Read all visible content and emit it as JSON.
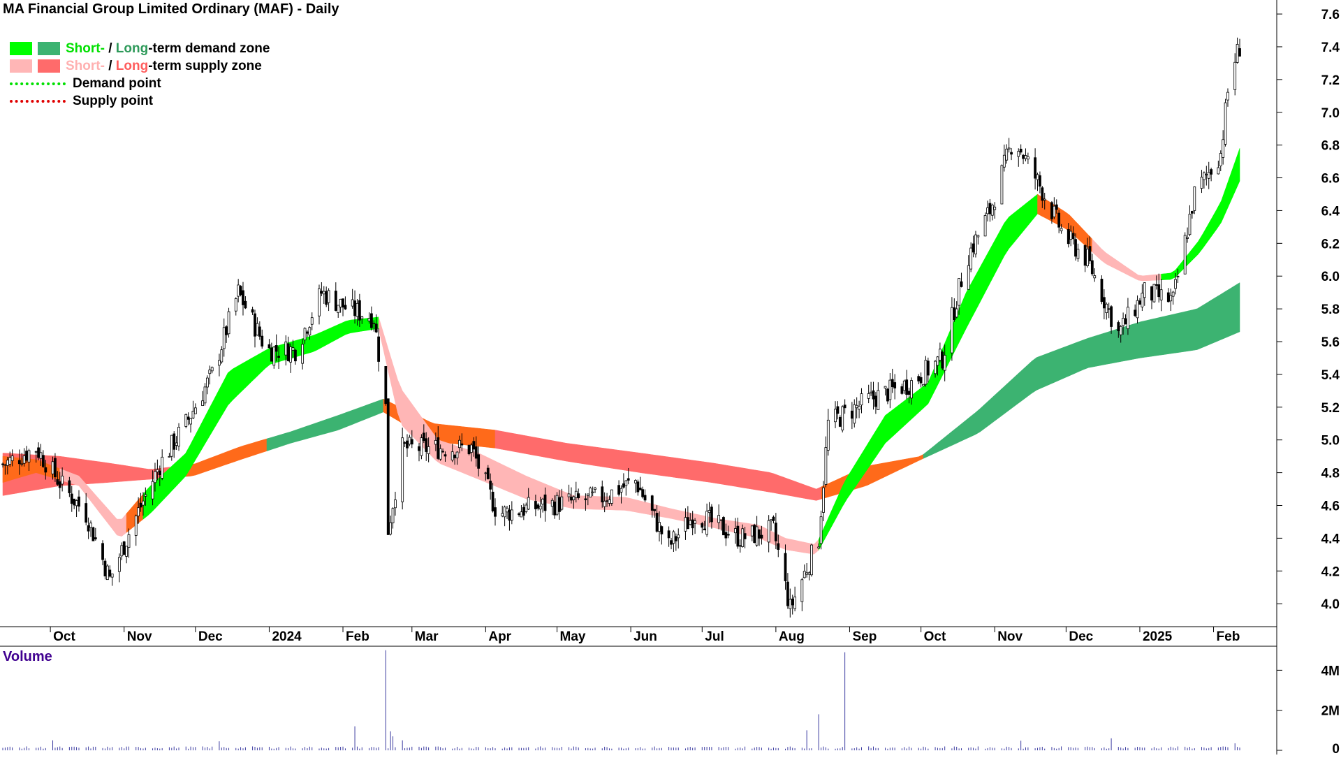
{
  "title": "MA Financial Group Limited Ordinary (MAF) - Daily",
  "legend": {
    "demand_short": "Short-",
    "demand_sep": " / ",
    "demand_long": "Long",
    "demand_rest": "-term demand zone",
    "supply_short": "Short-",
    "supply_sep": " / ",
    "supply_long": "Long",
    "supply_rest": "-term supply zone",
    "demand_point": "Demand point",
    "supply_point": "Supply point"
  },
  "volume_label": "Volume",
  "colors": {
    "short_demand": "#00ff00",
    "long_demand": "#3cb371",
    "short_supply": "#ffb6b6",
    "long_supply": "#ff6b6b",
    "orange_zone": "#ff6a1a",
    "demand_point": "#00e000",
    "supply_point": "#e00000",
    "volume_bar": "#3a3aa0",
    "candle": "#000000"
  },
  "chart_data": {
    "type": "candlestick",
    "title": "MA Financial Group Limited Ordinary (MAF) - Daily",
    "ylim": [
      3.86,
      7.66
    ],
    "y_ticks": [
      4.0,
      4.2,
      4.4,
      4.6,
      4.8,
      5.0,
      5.2,
      5.4,
      5.6,
      5.8,
      6.0,
      6.2,
      6.4,
      6.6,
      6.8,
      7.0,
      7.2,
      7.4,
      7.6
    ],
    "y_tick_labels": [
      "4.0",
      "4.2",
      "4.4",
      "4.6",
      "4.8",
      "5.0",
      "5.2",
      "5.4",
      "5.6",
      "5.8",
      "6.0",
      "6.2",
      "6.4",
      "6.6",
      "6.8",
      "7.0",
      "7.2",
      "7.4",
      "7.6"
    ],
    "x_period": [
      "2023-09-11",
      "2025-02-12"
    ],
    "x_tick_labels": [
      {
        "date": "2023-10-01",
        "label": "Oct"
      },
      {
        "date": "2023-11-01",
        "label": "Nov"
      },
      {
        "date": "2023-12-01",
        "label": "Dec"
      },
      {
        "date": "2024-01-01",
        "label": "2024"
      },
      {
        "date": "2024-02-01",
        "label": "Feb"
      },
      {
        "date": "2024-03-01",
        "label": "Mar"
      },
      {
        "date": "2024-04-01",
        "label": "Apr"
      },
      {
        "date": "2024-05-01",
        "label": "May"
      },
      {
        "date": "2024-06-01",
        "label": "Jun"
      },
      {
        "date": "2024-07-01",
        "label": "Jul"
      },
      {
        "date": "2024-08-01",
        "label": "Aug"
      },
      {
        "date": "2024-09-01",
        "label": "Sep"
      },
      {
        "date": "2024-10-01",
        "label": "Oct"
      },
      {
        "date": "2024-11-01",
        "label": "Nov"
      },
      {
        "date": "2024-12-01",
        "label": "Dec"
      },
      {
        "date": "2025-01-01",
        "label": "2025"
      },
      {
        "date": "2025-02-01",
        "label": "Feb"
      }
    ],
    "price_close_keypoints": [
      {
        "x": "2023-09-11",
        "y": 4.85
      },
      {
        "x": "2023-09-25",
        "y": 4.95
      },
      {
        "x": "2023-10-06",
        "y": 4.72
      },
      {
        "x": "2023-10-16",
        "y": 4.55
      },
      {
        "x": "2023-10-26",
        "y": 4.15
      },
      {
        "x": "2023-11-05",
        "y": 4.5
      },
      {
        "x": "2023-11-16",
        "y": 4.85
      },
      {
        "x": "2023-11-27",
        "y": 5.1
      },
      {
        "x": "2023-12-08",
        "y": 5.4
      },
      {
        "x": "2023-12-19",
        "y": 5.9
      },
      {
        "x": "2023-12-31",
        "y": 5.55
      },
      {
        "x": "2024-01-12",
        "y": 5.55
      },
      {
        "x": "2024-01-23",
        "y": 5.9
      },
      {
        "x": "2024-02-03",
        "y": 5.8
      },
      {
        "x": "2024-02-14",
        "y": 5.75
      },
      {
        "x": "2024-02-19",
        "y": 5.2
      },
      {
        "x": "2024-02-20",
        "y": 4.45
      },
      {
        "x": "2024-02-26",
        "y": 4.95
      },
      {
        "x": "2024-03-10",
        "y": 4.95
      },
      {
        "x": "2024-03-26",
        "y": 4.95
      },
      {
        "x": "2024-04-06",
        "y": 4.55
      },
      {
        "x": "2024-04-26",
        "y": 4.6
      },
      {
        "x": "2024-05-20",
        "y": 4.65
      },
      {
        "x": "2024-06-03",
        "y": 4.75
      },
      {
        "x": "2024-06-17",
        "y": 4.35
      },
      {
        "x": "2024-06-28",
        "y": 4.55
      },
      {
        "x": "2024-07-17",
        "y": 4.4
      },
      {
        "x": "2024-07-31",
        "y": 4.45
      },
      {
        "x": "2024-08-07",
        "y": 3.97
      },
      {
        "x": "2024-08-19",
        "y": 4.4
      },
      {
        "x": "2024-08-23",
        "y": 5.1
      },
      {
        "x": "2024-09-10",
        "y": 5.25
      },
      {
        "x": "2024-09-27",
        "y": 5.35
      },
      {
        "x": "2024-10-10",
        "y": 5.5
      },
      {
        "x": "2024-10-20",
        "y": 6.1
      },
      {
        "x": "2024-10-30",
        "y": 6.4
      },
      {
        "x": "2024-11-09",
        "y": 6.85
      },
      {
        "x": "2024-11-20",
        "y": 6.55
      },
      {
        "x": "2024-11-30",
        "y": 6.25
      },
      {
        "x": "2024-12-10",
        "y": 6.1
      },
      {
        "x": "2024-12-23",
        "y": 5.65
      },
      {
        "x": "2025-01-03",
        "y": 5.9
      },
      {
        "x": "2025-01-15",
        "y": 5.85
      },
      {
        "x": "2025-01-24",
        "y": 6.5
      },
      {
        "x": "2025-02-04",
        "y": 6.75
      },
      {
        "x": "2025-02-08",
        "y": 7.25
      },
      {
        "x": "2025-02-12",
        "y": 7.4
      }
    ],
    "short_term_zone": {
      "x": [
        "2023-09-11",
        "2023-09-25",
        "2023-10-13",
        "2023-10-30",
        "2023-11-12",
        "2023-11-27",
        "2023-12-15",
        "2024-01-01",
        "2024-01-20",
        "2024-02-03",
        "2024-02-16",
        "2024-02-25",
        "2024-03-12",
        "2024-03-29",
        "2024-04-18",
        "2024-05-08",
        "2024-05-30",
        "2024-06-18",
        "2024-07-07",
        "2024-07-25",
        "2024-08-05",
        "2024-08-18",
        "2024-08-30",
        "2024-09-16",
        "2024-10-04",
        "2024-10-20",
        "2024-11-06",
        "2024-11-19",
        "2024-12-02",
        "2024-12-17",
        "2025-01-01",
        "2025-01-15",
        "2025-01-26",
        "2025-02-04",
        "2025-02-12"
      ],
      "upper": [
        4.9,
        4.88,
        4.78,
        4.5,
        4.72,
        4.92,
        5.42,
        5.56,
        5.64,
        5.73,
        5.75,
        5.32,
        5.0,
        4.92,
        4.78,
        4.66,
        4.65,
        4.58,
        4.52,
        4.48,
        4.4,
        4.36,
        4.75,
        5.15,
        5.35,
        5.9,
        6.35,
        6.5,
        6.38,
        6.15,
        6.0,
        6.02,
        6.22,
        6.45,
        6.78
      ],
      "lower": [
        4.74,
        4.8,
        4.72,
        4.4,
        4.55,
        4.78,
        5.22,
        5.46,
        5.54,
        5.65,
        5.68,
        5.1,
        4.86,
        4.76,
        4.64,
        4.58,
        4.57,
        4.52,
        4.46,
        4.4,
        4.33,
        4.3,
        4.62,
        4.98,
        5.22,
        5.68,
        6.15,
        6.38,
        6.28,
        6.08,
        5.97,
        5.98,
        6.14,
        6.32,
        6.58
      ],
      "segments": [
        {
          "from": "2023-09-11",
          "to": "2023-10-05",
          "kind": "orange"
        },
        {
          "from": "2023-10-05",
          "to": "2023-11-02",
          "kind": "short_supply"
        },
        {
          "from": "2023-11-02",
          "to": "2023-11-09",
          "kind": "orange"
        },
        {
          "from": "2023-11-09",
          "to": "2024-02-16",
          "kind": "short_demand"
        },
        {
          "from": "2024-02-16",
          "to": "2024-04-10",
          "kind": "short_supply"
        },
        {
          "from": "2024-04-10",
          "to": "2024-08-19",
          "kind": "short_supply"
        },
        {
          "from": "2024-08-19",
          "to": "2024-11-19",
          "kind": "short_demand"
        },
        {
          "from": "2024-11-19",
          "to": "2024-12-12",
          "kind": "orange"
        },
        {
          "from": "2024-12-12",
          "to": "2025-01-10",
          "kind": "short_supply"
        },
        {
          "from": "2025-01-10",
          "to": "2025-02-12",
          "kind": "short_demand"
        }
      ]
    },
    "long_term_zone": {
      "x": [
        "2023-09-11",
        "2023-10-05",
        "2023-10-25",
        "2023-11-12",
        "2023-11-30",
        "2023-12-20",
        "2024-01-10",
        "2024-01-30",
        "2024-02-18",
        "2024-03-10",
        "2024-04-05",
        "2024-05-05",
        "2024-06-05",
        "2024-07-05",
        "2024-07-30",
        "2024-08-18",
        "2024-09-08",
        "2024-10-01",
        "2024-10-25",
        "2024-11-18",
        "2024-12-10",
        "2025-01-01",
        "2025-01-25",
        "2025-02-12"
      ],
      "upper": [
        4.92,
        4.9,
        4.86,
        4.82,
        4.85,
        4.96,
        5.05,
        5.15,
        5.25,
        5.1,
        5.06,
        4.98,
        4.92,
        4.86,
        4.8,
        4.7,
        4.84,
        4.9,
        5.18,
        5.5,
        5.62,
        5.72,
        5.8,
        5.96
      ],
      "lower": [
        4.66,
        4.72,
        4.74,
        4.76,
        4.78,
        4.88,
        4.98,
        5.06,
        5.17,
        4.99,
        4.95,
        4.87,
        4.8,
        4.74,
        4.68,
        4.63,
        4.72,
        4.88,
        5.04,
        5.3,
        5.44,
        5.5,
        5.55,
        5.66
      ],
      "segments": [
        {
          "from": "2023-09-11",
          "to": "2023-11-25",
          "kind": "long_supply"
        },
        {
          "from": "2023-11-25",
          "to": "2023-12-31",
          "kind": "orange"
        },
        {
          "from": "2023-12-31",
          "to": "2024-02-18",
          "kind": "long_demand"
        },
        {
          "from": "2024-02-18",
          "to": "2024-04-05",
          "kind": "orange"
        },
        {
          "from": "2024-04-05",
          "to": "2024-08-20",
          "kind": "long_supply"
        },
        {
          "from": "2024-08-20",
          "to": "2024-10-02",
          "kind": "orange"
        },
        {
          "from": "2024-10-02",
          "to": "2025-02-12",
          "kind": "long_demand"
        }
      ]
    },
    "volume": {
      "ylim": [
        0,
        5200000
      ],
      "y_ticks": [
        0,
        2000000,
        4000000
      ],
      "y_tick_labels": [
        "0",
        "2M",
        "4M"
      ],
      "baseline": 130000,
      "spikes": [
        {
          "x": "2023-10-02",
          "y": 500000
        },
        {
          "x": "2023-12-11",
          "y": 450000
        },
        {
          "x": "2024-02-06",
          "y": 1200000
        },
        {
          "x": "2024-02-19",
          "y": 5000000
        },
        {
          "x": "2024-02-21",
          "y": 950000
        },
        {
          "x": "2024-02-22",
          "y": 700000
        },
        {
          "x": "2024-02-26",
          "y": 500000
        },
        {
          "x": "2024-08-14",
          "y": 1000000
        },
        {
          "x": "2024-08-18",
          "y": 1400000
        },
        {
          "x": "2024-08-19",
          "y": 1800000
        },
        {
          "x": "2024-08-30",
          "y": 4900000
        },
        {
          "x": "2024-11-12",
          "y": 480000
        },
        {
          "x": "2024-12-20",
          "y": 600000
        },
        {
          "x": "2025-02-10",
          "y": 350000
        }
      ]
    }
  }
}
